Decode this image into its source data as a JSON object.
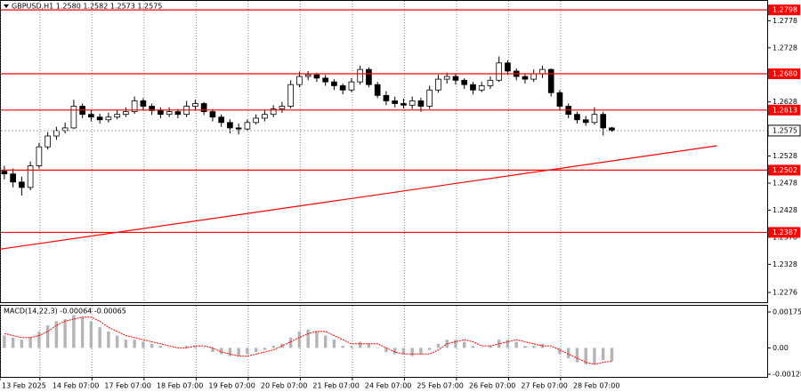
{
  "chart_data": [
    {
      "type": "candlestick",
      "title": "GBPUSD,H1  1.2580 1.2582 1.2573 1.2575",
      "x": [
        0,
        1,
        2,
        3,
        4,
        5,
        6,
        7,
        8,
        9,
        10,
        11,
        12,
        13,
        14,
        15,
        16,
        17,
        18,
        19,
        20,
        21,
        22,
        23,
        24,
        25,
        26,
        27,
        28,
        29,
        30,
        31,
        32,
        33,
        34,
        35,
        36,
        37,
        38,
        39,
        40,
        41,
        42,
        43,
        44,
        45,
        46,
        47,
        48,
        49,
        50,
        51,
        52,
        53,
        54,
        55,
        56,
        57,
        58,
        59,
        60,
        61,
        62,
        63,
        64,
        65,
        66,
        67,
        68,
        69,
        70
      ],
      "open": [
        1.25,
        1.2495,
        1.248,
        1.247,
        1.251,
        1.2545,
        1.2565,
        1.2575,
        1.258,
        1.262,
        1.2605,
        1.26,
        1.2595,
        1.26,
        1.2605,
        1.261,
        1.263,
        1.262,
        1.2612,
        1.2605,
        1.261,
        1.2605,
        1.262,
        1.2625,
        1.261,
        1.26,
        1.259,
        1.258,
        1.2578,
        1.259,
        1.2598,
        1.2605,
        1.2615,
        1.262,
        1.266,
        1.2675,
        1.2678,
        1.2672,
        1.2665,
        1.2658,
        1.265,
        1.2665,
        1.2688,
        1.266,
        1.264,
        1.263,
        1.2625,
        1.2622,
        1.263,
        1.262,
        1.265,
        1.267,
        1.2675,
        1.2668,
        1.266,
        1.265,
        1.2658,
        1.2668,
        1.27,
        1.2685,
        1.2675,
        1.267,
        1.268,
        1.2688,
        1.2645,
        1.262,
        1.2605,
        1.2595,
        1.259,
        1.2605,
        1.258
      ],
      "high": [
        1.251,
        1.2505,
        1.249,
        1.2518,
        1.2552,
        1.2572,
        1.2582,
        1.259,
        1.2632,
        1.2625,
        1.2612,
        1.2606,
        1.2608,
        1.2612,
        1.2618,
        1.2638,
        1.2635,
        1.2625,
        1.2618,
        1.2618,
        1.2615,
        1.263,
        1.2632,
        1.2628,
        1.2615,
        1.2605,
        1.2596,
        1.2588,
        1.2596,
        1.2605,
        1.2612,
        1.2622,
        1.2628,
        1.2668,
        1.2684,
        1.2685,
        1.2682,
        1.2678,
        1.267,
        1.2662,
        1.2672,
        1.2695,
        1.2692,
        1.2665,
        1.2648,
        1.2638,
        1.2634,
        1.2638,
        1.2636,
        1.2658,
        1.2678,
        1.2682,
        1.268,
        1.2672,
        1.2665,
        1.2665,
        1.2675,
        1.2712,
        1.2705,
        1.269,
        1.268,
        1.2688,
        1.2695,
        1.269,
        1.265,
        1.2625,
        1.261,
        1.2602,
        1.2618,
        1.261,
        1.2582
      ],
      "low": [
        1.2485,
        1.247,
        1.2455,
        1.2465,
        1.2505,
        1.254,
        1.2558,
        1.257,
        1.2578,
        1.2598,
        1.2592,
        1.2588,
        1.259,
        1.2596,
        1.26,
        1.2606,
        1.2612,
        1.2604,
        1.2598,
        1.26,
        1.2598,
        1.26,
        1.2612,
        1.2604,
        1.2592,
        1.2582,
        1.257,
        1.2568,
        1.2574,
        1.2586,
        1.2592,
        1.26,
        1.2608,
        1.2616,
        1.2655,
        1.2668,
        1.2665,
        1.2658,
        1.265,
        1.2642,
        1.2646,
        1.266,
        1.2655,
        1.2635,
        1.2622,
        1.2618,
        1.2616,
        1.2615,
        1.261,
        1.2615,
        1.2645,
        1.2662,
        1.266,
        1.2652,
        1.2642,
        1.2646,
        1.2652,
        1.2665,
        1.2678,
        1.2668,
        1.2662,
        1.2665,
        1.2672,
        1.2638,
        1.2612,
        1.2598,
        1.2588,
        1.2584,
        1.2586,
        1.2566,
        1.2573
      ],
      "close": [
        1.2495,
        1.248,
        1.247,
        1.251,
        1.2545,
        1.2565,
        1.2575,
        1.258,
        1.262,
        1.2605,
        1.26,
        1.2595,
        1.26,
        1.2605,
        1.261,
        1.263,
        1.262,
        1.2612,
        1.2605,
        1.261,
        1.2605,
        1.262,
        1.2625,
        1.261,
        1.26,
        1.259,
        1.258,
        1.2578,
        1.259,
        1.2598,
        1.2605,
        1.2615,
        1.262,
        1.266,
        1.2675,
        1.2678,
        1.2672,
        1.2665,
        1.2658,
        1.265,
        1.2665,
        1.2688,
        1.266,
        1.264,
        1.263,
        1.2625,
        1.2622,
        1.263,
        1.262,
        1.265,
        1.267,
        1.2675,
        1.2668,
        1.266,
        1.265,
        1.2658,
        1.2668,
        1.27,
        1.2685,
        1.2675,
        1.267,
        1.268,
        1.2688,
        1.2645,
        1.262,
        1.2605,
        1.2595,
        1.259,
        1.2605,
        1.258,
        1.2575
      ],
      "xlim": [
        0,
        88.4
      ],
      "xticks": [
        {
          "value": 0,
          "label": "13 Feb 2025"
        },
        {
          "value": 4.6,
          "label": "14 Feb 07:00"
        },
        {
          "value": 10.6,
          "label": "17 Feb 07:00"
        },
        {
          "value": 16.6,
          "label": "18 Feb 07:00"
        },
        {
          "value": 22.6,
          "label": "19 Feb 07:00"
        },
        {
          "value": 28.6,
          "label": "20 Feb 07:00"
        },
        {
          "value": 34.6,
          "label": "21 Feb 07:00"
        },
        {
          "value": 40.6,
          "label": "24 Feb 07:00"
        },
        {
          "value": 46.6,
          "label": "25 Feb 07:00"
        },
        {
          "value": 52.6,
          "label": "26 Feb 07:00"
        },
        {
          "value": 58.6,
          "label": "27 Feb 07:00"
        },
        {
          "value": 64.6,
          "label": "28 Feb 07:00"
        }
      ],
      "ylim": [
        1.2258,
        1.2813
      ],
      "yticks": [
        1.2276,
        1.2328,
        1.2378,
        1.2428,
        1.2478,
        1.2528,
        1.2628,
        1.2728,
        1.2778
      ],
      "levels": [
        1.2798,
        {
          "value": 1.268,
          "label": "1.2680"
        },
        1.2613,
        1.2502,
        1.2387
      ],
      "level_color": "#ff0000",
      "current_price": 1.2575,
      "trendline": {
        "x": [
          0,
          82.6
        ],
        "y": [
          1.2356,
          1.2547
        ],
        "color": "#ff0000"
      },
      "grid": true
    },
    {
      "type": "macd",
      "title": "MACD(14,22,3) -0.00064 -0.00065",
      "x": [
        0,
        1,
        2,
        3,
        4,
        5,
        6,
        7,
        8,
        9,
        10,
        11,
        12,
        13,
        14,
        15,
        16,
        17,
        18,
        19,
        20,
        21,
        22,
        23,
        24,
        25,
        26,
        27,
        28,
        29,
        30,
        31,
        32,
        33,
        34,
        35,
        36,
        37,
        38,
        39,
        40,
        41,
        42,
        43,
        44,
        45,
        46,
        47,
        48,
        49,
        50,
        51,
        52,
        53,
        54,
        55,
        56,
        57,
        58,
        59,
        60,
        61,
        62,
        63,
        64,
        65,
        66,
        67,
        68,
        69,
        70
      ],
      "xlim": [
        0,
        88.4
      ],
      "ylim": [
        -0.00141,
        0.00205
      ],
      "yticks": [
        -0.00128,
        {
          "value": 0,
          "label": "0.00"
        },
        0.00175
      ],
      "series": [
        {
          "name": "MACD",
          "color": "#b4b4b4",
          "values": [
            0.0006,
            0.0005,
            0.0004,
            0.0005,
            0.0008,
            0.0011,
            0.0013,
            0.0014,
            0.0016,
            0.0015,
            0.0013,
            0.001,
            0.0008,
            0.0006,
            0.0004,
            0.0004,
            0.0003,
            0.0002,
            0.0001,
            0.0,
            0.0,
            0.0001,
            0.0001,
            0.0,
            -0.0002,
            -0.0003,
            -0.0004,
            -0.0004,
            -0.0003,
            -0.0002,
            -0.0001,
            0.0001,
            0.0002,
            0.0005,
            0.0008,
            0.0009,
            0.0008,
            0.0006,
            0.0004,
            0.0001,
            0.0001,
            0.0003,
            0.0002,
            0.0,
            -0.0002,
            -0.0003,
            -0.0003,
            -0.0004,
            -0.0003,
            -0.0001,
            0.0002,
            0.0004,
            0.0004,
            0.0003,
            0.0001,
            0.0,
            0.0001,
            0.0004,
            0.0004,
            0.0003,
            0.0001,
            0.0001,
            0.0002,
            0.0,
            -0.0003,
            -0.0005,
            -0.0007,
            -0.0008,
            -0.0008,
            -0.0006,
            -0.00064
          ]
        },
        {
          "name": "Signal",
          "color": "#ff0000",
          "values": [
            0.0007,
            0.0006,
            0.0005,
            0.0005,
            0.0006,
            0.0008,
            0.0011,
            0.0013,
            0.0014,
            0.0015,
            0.0015,
            0.0013,
            0.001,
            0.0008,
            0.0006,
            0.0005,
            0.0004,
            0.0003,
            0.0002,
            0.0001,
            0.0,
            0.0,
            0.0001,
            0.0001,
            0.0,
            -0.0002,
            -0.0003,
            -0.0004,
            -0.0004,
            -0.0003,
            -0.0002,
            -0.0001,
            0.0001,
            0.0003,
            0.0005,
            0.0007,
            0.0008,
            0.0008,
            0.0006,
            0.0004,
            0.0002,
            0.0002,
            0.0002,
            0.0002,
            0.0,
            -0.0002,
            -0.0003,
            -0.0003,
            -0.0003,
            -0.0003,
            -0.0001,
            0.0002,
            0.0003,
            0.0004,
            0.0003,
            0.0001,
            0.0001,
            0.0002,
            0.0003,
            0.0004,
            0.0003,
            0.0002,
            0.0001,
            0.0001,
            -0.0001,
            -0.0003,
            -0.0005,
            -0.0007,
            -0.0008,
            -0.0007,
            -0.00065
          ]
        }
      ]
    }
  ]
}
